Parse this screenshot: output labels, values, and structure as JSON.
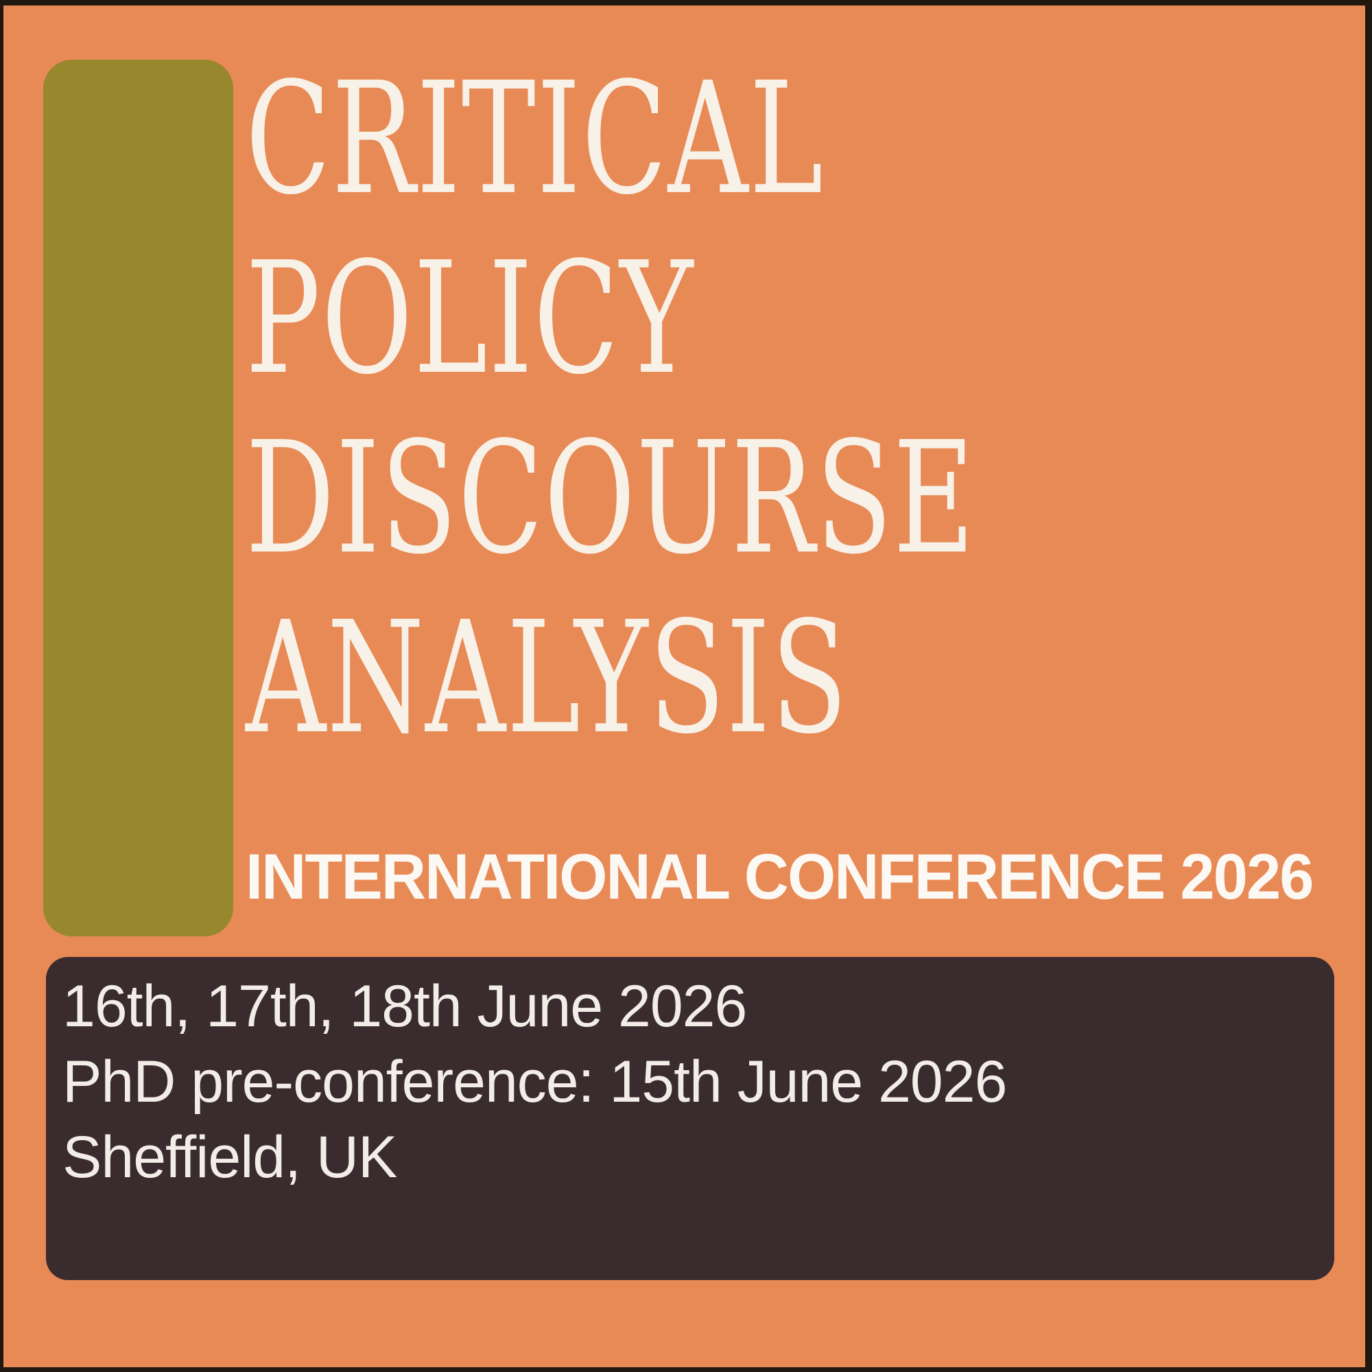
{
  "colors": {
    "background": "#E88A56",
    "frame_border": "#20180F",
    "accent_bar": "#97882E",
    "panel": "#392B2E",
    "title_text": "#F8F1E7",
    "subtitle_text": "#FCF9F4",
    "panel_text": "#F3EDE8"
  },
  "title": {
    "lines": [
      "CRITICAL",
      "POLICY",
      "DISCOURSE",
      "ANALYSIS"
    ]
  },
  "subtitle": {
    "text": "INTERNATIONAL CONFERENCE 2026"
  },
  "details_panel": {
    "dates": "16th, 17th, 18th June 2026",
    "phd_preconference": "PhD pre-conference: 15th June 2026",
    "location": "Sheffield, UK"
  }
}
